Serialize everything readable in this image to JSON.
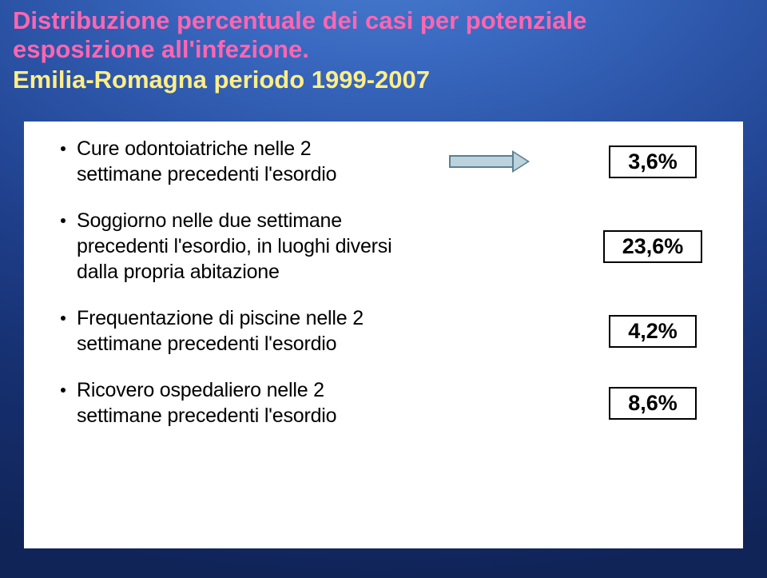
{
  "title": {
    "line1": "Distribuzione percentuale dei casi per potenziale",
    "line2": "esposizione all'infezione.",
    "line3": "Emilia-Romagna  periodo 1999-2007"
  },
  "rows": [
    {
      "desc": "Cure odontoiatriche nelle 2 settimane precedenti l'esordio",
      "value": "3,6%",
      "show_arrow": true
    },
    {
      "desc": "Soggiorno nelle due settimane precedenti l'esordio, in luoghi diversi dalla propria abitazione",
      "value": "23,6%",
      "show_arrow": false
    },
    {
      "desc": "Frequentazione di piscine nelle 2 settimane precedenti l'esordio",
      "value": "4,2%",
      "show_arrow": false
    },
    {
      "desc": "Ricovero ospedaliero nelle 2 settimane precedenti l'esordio",
      "value": "8,6%",
      "show_arrow": false
    }
  ],
  "colors": {
    "title_primary": "#ff66b2",
    "title_secondary": "#ffee88",
    "arrow_fill": "#bcd3db",
    "arrow_border": "#5b7f92",
    "panel_bg": "#ffffff",
    "text": "#000000"
  }
}
